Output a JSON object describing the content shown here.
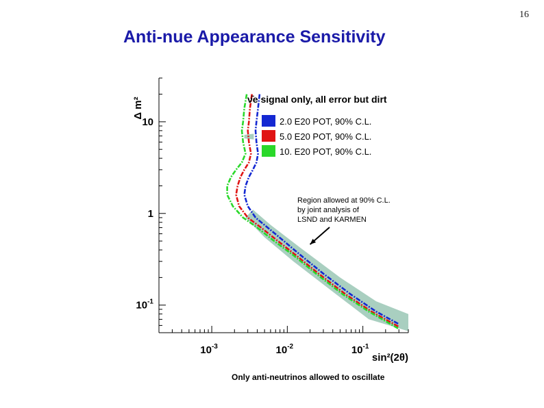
{
  "page_number": "16",
  "slide_title": "Anti-nue Appearance Sensitivity",
  "caption": "Only anti-neutrinos allowed to oscillate",
  "chart_data": {
    "type": "line",
    "title": "ν̄e signal only, all error but dirt",
    "xlabel": "sin²(2θ)",
    "ylabel": "Δ m²",
    "x_scale": "log",
    "y_scale": "log",
    "xlim": [
      0.0002,
      0.4
    ],
    "ylim": [
      0.05,
      30
    ],
    "x_ticks": [
      {
        "value": 0.001,
        "base": "10",
        "exp": "-3"
      },
      {
        "value": 0.01,
        "base": "10",
        "exp": "-2"
      },
      {
        "value": 0.1,
        "base": "10",
        "exp": "-1"
      }
    ],
    "y_ticks": [
      {
        "value": 10,
        "label": "10"
      },
      {
        "value": 1,
        "label": "1"
      },
      {
        "value": 0.1,
        "base": "10",
        "exp": "-1"
      }
    ],
    "legend_position": "top-right",
    "series": [
      {
        "name": "2.0 E20 POT, 90% C.L.",
        "color": "#1428d2",
        "points": [
          [
            0.0043,
            20
          ],
          [
            0.0041,
            14
          ],
          [
            0.0039,
            10
          ],
          [
            0.0038,
            8
          ],
          [
            0.0039,
            6
          ],
          [
            0.0041,
            4.5
          ],
          [
            0.0039,
            3.6
          ],
          [
            0.0035,
            3.0
          ],
          [
            0.0031,
            2.5
          ],
          [
            0.0028,
            2.0
          ],
          [
            0.0027,
            1.6
          ],
          [
            0.003,
            1.2
          ],
          [
            0.0038,
            0.9
          ],
          [
            0.0055,
            0.7
          ],
          [
            0.009,
            0.5
          ],
          [
            0.015,
            0.35
          ],
          [
            0.03,
            0.22
          ],
          [
            0.07,
            0.13
          ],
          [
            0.15,
            0.085
          ],
          [
            0.3,
            0.062
          ]
        ]
      },
      {
        "name": "5.0 E20 POT, 90% C.L.",
        "color": "#e01414",
        "points": [
          [
            0.0034,
            20
          ],
          [
            0.0032,
            14
          ],
          [
            0.0031,
            10
          ],
          [
            0.003,
            8
          ],
          [
            0.0031,
            6
          ],
          [
            0.0033,
            4.5
          ],
          [
            0.0031,
            3.6
          ],
          [
            0.0027,
            3.0
          ],
          [
            0.0024,
            2.5
          ],
          [
            0.0022,
            2.0
          ],
          [
            0.0021,
            1.6
          ],
          [
            0.0023,
            1.2
          ],
          [
            0.003,
            0.9
          ],
          [
            0.0045,
            0.7
          ],
          [
            0.0075,
            0.5
          ],
          [
            0.013,
            0.35
          ],
          [
            0.026,
            0.22
          ],
          [
            0.06,
            0.13
          ],
          [
            0.13,
            0.085
          ],
          [
            0.3,
            0.058
          ]
        ]
      },
      {
        "name": "10. E20 POT, 90% C.L.",
        "color": "#2ad82a",
        "points": [
          [
            0.0029,
            20
          ],
          [
            0.0027,
            14
          ],
          [
            0.0026,
            10
          ],
          [
            0.0025,
            8
          ],
          [
            0.0026,
            6
          ],
          [
            0.0028,
            4.5
          ],
          [
            0.0025,
            3.6
          ],
          [
            0.0021,
            3.0
          ],
          [
            0.0018,
            2.5
          ],
          [
            0.0016,
            2.0
          ],
          [
            0.0016,
            1.6
          ],
          [
            0.0019,
            1.2
          ],
          [
            0.0026,
            0.9
          ],
          [
            0.004,
            0.7
          ],
          [
            0.0067,
            0.5
          ],
          [
            0.012,
            0.35
          ],
          [
            0.024,
            0.22
          ],
          [
            0.055,
            0.13
          ],
          [
            0.12,
            0.085
          ],
          [
            0.3,
            0.055
          ]
        ]
      }
    ],
    "allowed_regions": [
      {
        "name": "Region allowed at 90% C.L. by joint analysis of LSND and KARMEN",
        "color": "#a9cfc0",
        "polygon": [
          [
            0.0035,
            1.1
          ],
          [
            0.006,
            0.75
          ],
          [
            0.015,
            0.42
          ],
          [
            0.05,
            0.2
          ],
          [
            0.15,
            0.11
          ],
          [
            0.4,
            0.08
          ],
          [
            0.4,
            0.052
          ],
          [
            0.12,
            0.07
          ],
          [
            0.04,
            0.14
          ],
          [
            0.012,
            0.3
          ],
          [
            0.005,
            0.55
          ],
          [
            0.0028,
            0.9
          ]
        ]
      },
      {
        "name": "",
        "color": "#a9cfc0",
        "polygon": [
          [
            0.0027,
            7.2
          ],
          [
            0.0036,
            7.4
          ],
          [
            0.0036,
            6.4
          ],
          [
            0.0027,
            6.6
          ]
        ]
      }
    ],
    "annotation": {
      "lines": [
        "Region allowed at 90% C.L.",
        "by joint analysis of",
        "LSND and KARMEN"
      ],
      "arrow_to": [
        0.02,
        0.46
      ]
    }
  }
}
